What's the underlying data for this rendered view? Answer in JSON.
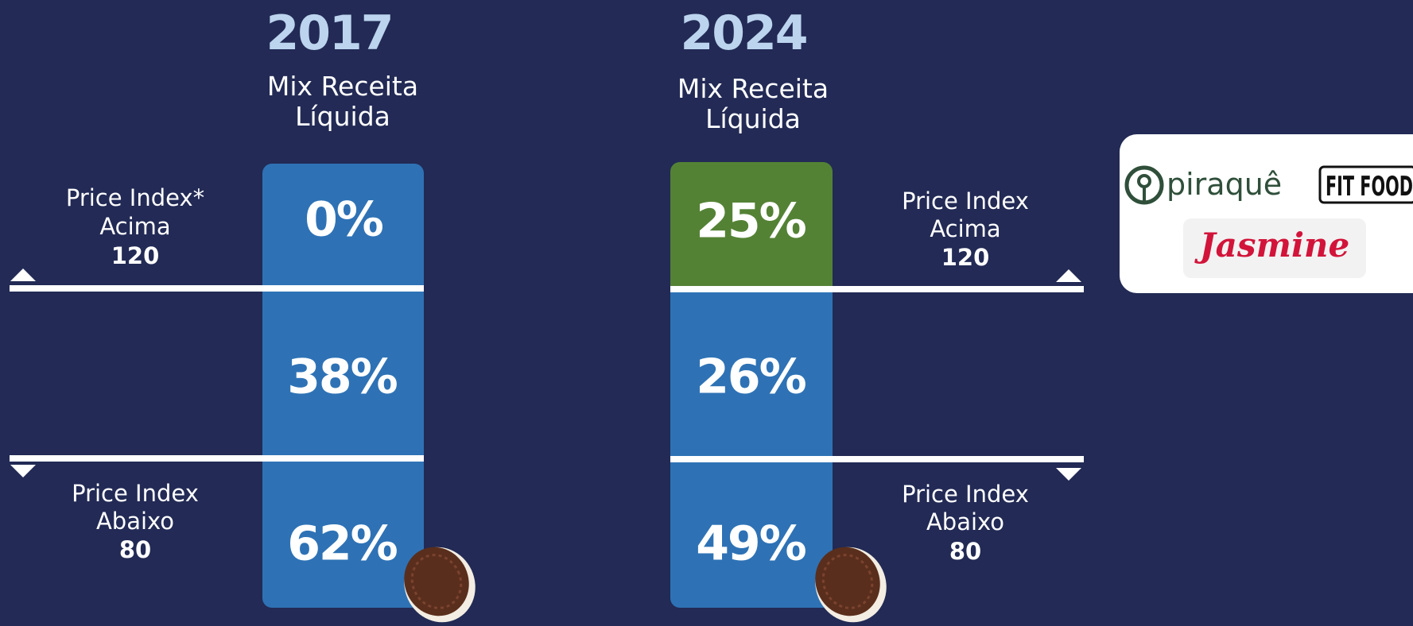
{
  "panels": [
    {
      "year": "2017",
      "subtitle": [
        "Mix Receita",
        "Líquida"
      ],
      "segments": [
        "0%",
        "38%",
        "62%"
      ],
      "upper_label": [
        "Price Index*",
        "Acima",
        "120"
      ],
      "lower_label": [
        "Price Index",
        "Abaixo",
        "80"
      ]
    },
    {
      "year": "2024",
      "subtitle": [
        "Mix Receita",
        "Líquida"
      ],
      "segments": [
        "25%",
        "26%",
        "49%"
      ],
      "upper_label": [
        "Price Index",
        "Acima",
        "120"
      ],
      "lower_label": [
        "Price Index",
        "Abaixo",
        "80"
      ]
    }
  ],
  "logos": [
    "piraquê",
    "FIT FOOD",
    "Jasmine"
  ]
}
